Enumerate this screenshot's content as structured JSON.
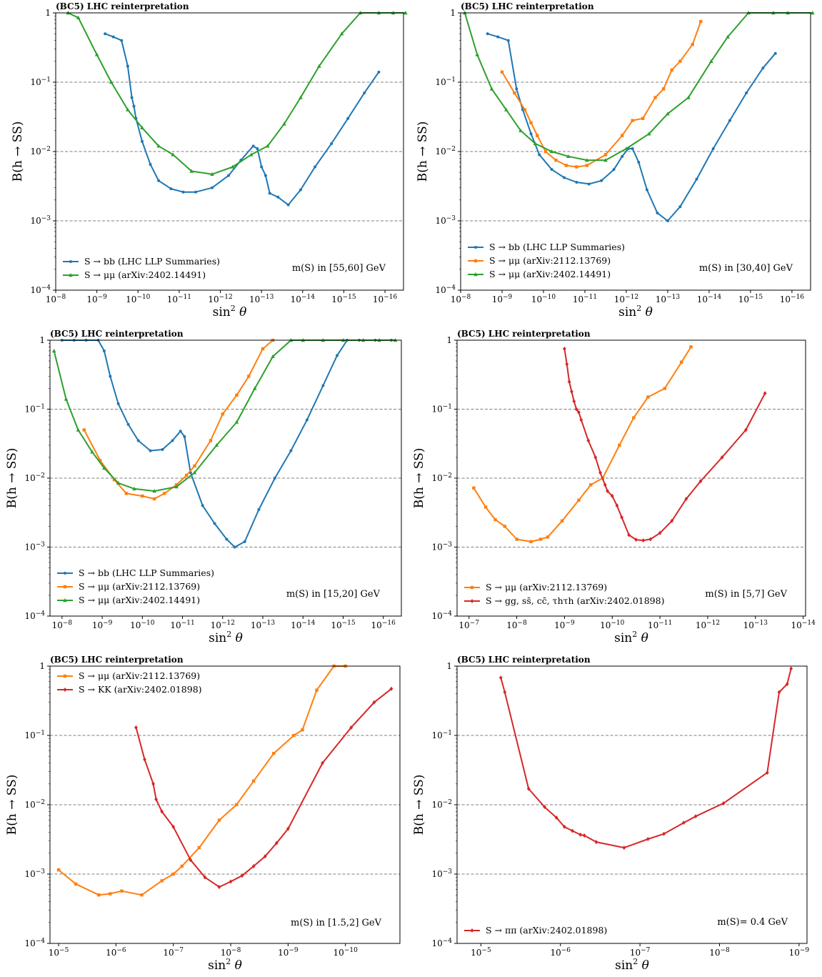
{
  "figure": {
    "panel_header": "(BC5) LHC reinterpretation",
    "ylabel": "B(h → SS)",
    "xlabel_main": "sin",
    "xlabel_sup": "2",
    "xlabel_tail": " θ"
  },
  "colors": {
    "blue": "#1f77b4",
    "orange": "#ff7f0e",
    "green": "#2ca02c",
    "red": "#d62728",
    "grid": "#555555"
  },
  "chart_data": [
    {
      "type": "line",
      "title": "(BC5) LHC reinterpretation",
      "xlabel": "sin^2 θ",
      "ylabel": "B(h → SS)",
      "xscale": "log-reversed",
      "yscale": "log",
      "xlim": [
        1e-08,
        1e-16
      ],
      "ylim": [
        0.0001,
        1
      ],
      "x_ticks": [
        "10^-8",
        "10^-9",
        "10^-10",
        "10^-11",
        "10^-12",
        "10^-13",
        "10^-14",
        "10^-15",
        "10^-16"
      ],
      "y_ticks": [
        "10^-4",
        "10^-3",
        "10^-2",
        "10^-1",
        "1"
      ],
      "grid": "horizontal dashed",
      "legend_position": "lower-left",
      "annotation": "m(S) in [55,60] GeV",
      "series": [
        {
          "name": "S → bb (LHC LLP Summaries)",
          "color": "blue",
          "marker": "dot",
          "x_exp": [
            -9.2,
            -9.4,
            -9.6,
            -9.75,
            -9.85,
            -9.9,
            -9.95,
            -10.1,
            -10.3,
            -10.5,
            -10.8,
            -11.1,
            -11.4,
            -11.8,
            -12.2,
            -12.5,
            -12.8,
            -12.9,
            -13.0,
            -13.1,
            -13.2,
            -13.4,
            -13.65,
            -13.95,
            -14.3,
            -14.7,
            -15.1,
            -15.5,
            -15.85
          ],
          "y": [
            0.5,
            0.45,
            0.4,
            0.17,
            0.06,
            0.045,
            0.03,
            0.014,
            0.0065,
            0.0038,
            0.0029,
            0.0026,
            0.0026,
            0.003,
            0.0045,
            0.0075,
            0.012,
            0.011,
            0.006,
            0.0045,
            0.0025,
            0.0022,
            0.0017,
            0.0028,
            0.006,
            0.013,
            0.03,
            0.07,
            0.14
          ]
        },
        {
          "name": "S → μμ (arXiv:2402.14491)",
          "color": "green",
          "marker": "triangle",
          "x_exp": [
            -8.3,
            -8.55,
            -9.0,
            -9.35,
            -9.75,
            -10.1,
            -10.5,
            -10.85,
            -11.3,
            -11.8,
            -12.3,
            -12.75,
            -13.15,
            -13.55,
            -13.95,
            -14.4,
            -14.95,
            -15.4,
            -15.85,
            -16.2,
            -16.5
          ],
          "y": [
            1.0,
            0.85,
            0.25,
            0.1,
            0.04,
            0.022,
            0.012,
            0.009,
            0.0052,
            0.0047,
            0.006,
            0.009,
            0.012,
            0.025,
            0.06,
            0.17,
            0.5,
            1.0,
            1.0,
            1.0,
            1.0
          ]
        }
      ]
    },
    {
      "type": "line",
      "title": "(BC5) LHC reinterpretation",
      "xlabel": "sin^2 θ",
      "ylabel": "B(h → SS)",
      "xscale": "log-reversed",
      "yscale": "log",
      "xlim": [
        1e-08,
        1e-16
      ],
      "ylim": [
        0.0001,
        1
      ],
      "x_ticks": [
        "10^-8",
        "10^-9",
        "10^-10",
        "10^-11",
        "10^-12",
        "10^-13",
        "10^-14",
        "10^-15",
        "10^-16"
      ],
      "y_ticks": [
        "10^-4",
        "10^-3",
        "10^-2",
        "10^-1",
        "1"
      ],
      "grid": "horizontal dashed",
      "legend_position": "lower-left",
      "annotation": "m(S) in [30,40] GeV",
      "series": [
        {
          "name": "S → bb (LHC LLP Summaries)",
          "color": "blue",
          "marker": "dot",
          "x_exp": [
            -8.65,
            -8.9,
            -9.15,
            -9.35,
            -9.5,
            -9.7,
            -9.9,
            -10.2,
            -10.5,
            -10.8,
            -11.1,
            -11.4,
            -11.7,
            -11.9,
            -12.05,
            -12.15,
            -12.3,
            -12.5,
            -12.75,
            -13.0,
            -13.3,
            -13.7,
            -14.1,
            -14.5,
            -14.9,
            -15.3,
            -15.6
          ],
          "y": [
            0.5,
            0.45,
            0.4,
            0.08,
            0.04,
            0.018,
            0.009,
            0.0055,
            0.0042,
            0.0036,
            0.0034,
            0.0038,
            0.0055,
            0.0085,
            0.011,
            0.011,
            0.007,
            0.0028,
            0.0013,
            0.001,
            0.0016,
            0.004,
            0.011,
            0.028,
            0.07,
            0.16,
            0.26
          ]
        },
        {
          "name": "S → μμ (arXiv:2112.13769)",
          "color": "orange",
          "marker": "square",
          "x_exp": [
            -9.0,
            -9.3,
            -9.55,
            -9.7,
            -9.85,
            -10.05,
            -10.3,
            -10.55,
            -10.8,
            -11.05,
            -11.5,
            -11.9,
            -12.15,
            -12.4,
            -12.7,
            -12.9,
            -13.1,
            -13.3,
            -13.6,
            -13.8
          ],
          "y": [
            0.14,
            0.07,
            0.04,
            0.026,
            0.017,
            0.01,
            0.0075,
            0.0063,
            0.006,
            0.0063,
            0.009,
            0.017,
            0.028,
            0.03,
            0.06,
            0.08,
            0.15,
            0.2,
            0.35,
            0.75
          ]
        },
        {
          "name": "S → μμ (arXiv:2402.14491)",
          "color": "green",
          "marker": "triangle",
          "x_exp": [
            -8.1,
            -8.4,
            -8.75,
            -9.1,
            -9.45,
            -9.8,
            -10.2,
            -10.6,
            -11.05,
            -11.5,
            -12.0,
            -12.55,
            -13.0,
            -13.5,
            -14.05,
            -14.45,
            -14.95,
            -15.55,
            -15.9,
            -16.5
          ],
          "y": [
            1.0,
            0.25,
            0.08,
            0.04,
            0.02,
            0.013,
            0.01,
            0.0085,
            0.0075,
            0.0075,
            0.011,
            0.018,
            0.035,
            0.06,
            0.2,
            0.45,
            1.0,
            1.0,
            1.0,
            1.0
          ]
        }
      ]
    },
    {
      "type": "line",
      "title": "(BC5) LHC reinterpretation",
      "xlabel": "sin^2 θ",
      "ylabel": "B(h → SS)",
      "xscale": "log-reversed",
      "yscale": "log",
      "xlim": [
        5e-08,
        5e-17
      ],
      "ylim": [
        0.0001,
        1
      ],
      "x_ticks": [
        "10^-8",
        "10^-9",
        "10^-10",
        "10^-11",
        "10^-12",
        "10^-13",
        "10^-14",
        "10^-15",
        "10^-16"
      ],
      "y_ticks": [
        "10^-4",
        "10^-3",
        "10^-2",
        "10^-1",
        "1"
      ],
      "grid": "horizontal dashed",
      "legend_position": "lower-left",
      "annotation": "m(S) in [15,20] GeV",
      "series": [
        {
          "name": "S → bb (LHC LLP Summaries)",
          "color": "blue",
          "marker": "dot",
          "x_exp": [
            -8.0,
            -8.3,
            -8.6,
            -8.9,
            -9.05,
            -9.2,
            -9.4,
            -9.65,
            -9.9,
            -10.2,
            -10.5,
            -10.75,
            -10.95,
            -11.05,
            -11.2,
            -11.5,
            -11.8,
            -12.1,
            -12.3,
            -12.55,
            -12.9,
            -13.3,
            -13.7,
            -14.1,
            -14.5,
            -14.85,
            -15.1,
            -15.4,
            -15.8,
            -16.2
          ],
          "y": [
            1.0,
            1.0,
            1.0,
            1.0,
            0.7,
            0.3,
            0.12,
            0.06,
            0.035,
            0.025,
            0.026,
            0.035,
            0.048,
            0.04,
            0.012,
            0.004,
            0.0022,
            0.0013,
            0.001,
            0.0012,
            0.0035,
            0.01,
            0.025,
            0.07,
            0.22,
            0.6,
            1.0,
            1.0,
            1.0,
            1.0
          ]
        },
        {
          "name": "S → μμ (arXiv:2112.13769)",
          "color": "orange",
          "marker": "square",
          "x_exp": [
            -8.55,
            -8.95,
            -9.3,
            -9.6,
            -10.0,
            -10.3,
            -10.55,
            -10.85,
            -11.1,
            -11.3,
            -11.7,
            -12.0,
            -12.35,
            -12.65,
            -13.0,
            -13.25
          ],
          "y": [
            0.05,
            0.018,
            0.0095,
            0.006,
            0.0055,
            0.005,
            0.006,
            0.008,
            0.011,
            0.015,
            0.035,
            0.085,
            0.16,
            0.3,
            0.75,
            1.0
          ]
        },
        {
          "name": "S → μμ (arXiv:2402.14491)",
          "color": "green",
          "marker": "triangle",
          "x_exp": [
            -7.8,
            -8.1,
            -8.4,
            -8.75,
            -9.05,
            -9.4,
            -9.8,
            -10.3,
            -10.85,
            -11.3,
            -11.85,
            -12.35,
            -12.8,
            -13.25,
            -13.7,
            -14.0,
            -14.5,
            -15.0,
            -15.5,
            -15.9,
            -16.3
          ],
          "y": [
            0.7,
            0.14,
            0.05,
            0.024,
            0.014,
            0.0085,
            0.007,
            0.0065,
            0.0075,
            0.012,
            0.03,
            0.065,
            0.2,
            0.58,
            1.0,
            1.0,
            1.0,
            1.0,
            1.0,
            1.0,
            1.0
          ]
        }
      ]
    },
    {
      "type": "line",
      "title": "(BC5) LHC reinterpretation",
      "xlabel": "sin^2 θ",
      "ylabel": "B(h → SS)",
      "xscale": "log-reversed",
      "yscale": "log",
      "xlim": [
        3e-07,
        1e-14
      ],
      "ylim": [
        0.0001,
        1
      ],
      "x_ticks": [
        "10^-7",
        "10^-8",
        "10^-9",
        "10^-10",
        "10^-11",
        "10^-12",
        "10^-13",
        "10^-14"
      ],
      "y_ticks": [
        "10^-4",
        "10^-3",
        "10^-2",
        "10^-1",
        "1"
      ],
      "grid": "horizontal dashed",
      "legend_position": "lower-left",
      "annotation": "m(S) in [5,7] GeV",
      "series": [
        {
          "name": "S → μμ (arXiv:2112.13769)",
          "color": "orange",
          "marker": "square",
          "x_exp": [
            -7.1,
            -7.35,
            -7.55,
            -7.75,
            -8.0,
            -8.3,
            -8.5,
            -8.65,
            -8.95,
            -9.3,
            -9.55,
            -9.8,
            -10.15,
            -10.45,
            -10.75,
            -11.1,
            -11.45,
            -11.65
          ],
          "y": [
            0.0072,
            0.0038,
            0.0025,
            0.002,
            0.0013,
            0.0012,
            0.0013,
            0.0014,
            0.0024,
            0.0048,
            0.008,
            0.01,
            0.03,
            0.075,
            0.15,
            0.2,
            0.48,
            0.8
          ]
        },
        {
          "name": "S → gg, ss̄, cc̄, τhτh (arXiv:2402.01898)",
          "color": "red",
          "marker": "diamond",
          "x_exp": [
            -9.0,
            -9.05,
            -9.1,
            -9.15,
            -9.2,
            -9.25,
            -9.3,
            -9.35,
            -9.5,
            -9.65,
            -9.75,
            -9.85,
            -9.9,
            -10.0,
            -10.1,
            -10.2,
            -10.35,
            -10.5,
            -10.65,
            -10.8,
            -11.0,
            -11.25,
            -11.55,
            -11.85,
            -12.3,
            -12.8,
            -13.2
          ],
          "y": [
            0.75,
            0.45,
            0.25,
            0.18,
            0.13,
            0.1,
            0.09,
            0.07,
            0.035,
            0.02,
            0.012,
            0.008,
            0.0065,
            0.0055,
            0.004,
            0.0027,
            0.0015,
            0.00128,
            0.00125,
            0.0013,
            0.0016,
            0.0024,
            0.005,
            0.009,
            0.02,
            0.05,
            0.17
          ]
        }
      ]
    },
    {
      "type": "line",
      "title": "(BC5) LHC reinterpretation",
      "xlabel": "sin^2 θ",
      "ylabel": "B(h → SS)",
      "xscale": "log-reversed",
      "yscale": "log",
      "xlim": [
        1.5e-05,
        1e-11
      ],
      "ylim": [
        0.0001,
        1
      ],
      "x_ticks": [
        "10^-5",
        "10^-6",
        "10^-7",
        "10^-8",
        "10^-9",
        "10^-10"
      ],
      "y_ticks": [
        "10^-4",
        "10^-3",
        "10^-2",
        "10^-1",
        "1"
      ],
      "grid": "horizontal dashed",
      "legend_position": "upper-left",
      "annotation": "m(S) in [1.5,2] GeV",
      "series": [
        {
          "name": "S → μμ (arXiv:2112.13769)",
          "color": "orange",
          "marker": "square",
          "x_exp": [
            -5.0,
            -5.3,
            -5.7,
            -5.9,
            -6.1,
            -6.45,
            -6.8,
            -7.0,
            -7.15,
            -7.45,
            -7.8,
            -8.1,
            -8.4,
            -8.75,
            -9.1,
            -9.25,
            -9.5,
            -9.8,
            -10.0
          ],
          "y": [
            0.00115,
            0.00072,
            0.0005,
            0.00052,
            0.00057,
            0.0005,
            0.0008,
            0.001,
            0.0013,
            0.0024,
            0.006,
            0.01,
            0.022,
            0.055,
            0.1,
            0.12,
            0.45,
            1.0,
            1.0
          ]
        },
        {
          "name": "S → KK (arXiv:2402.01898)",
          "color": "red",
          "marker": "diamond",
          "x_exp": [
            -6.35,
            -6.5,
            -6.65,
            -6.7,
            -6.8,
            -7.0,
            -7.3,
            -7.55,
            -7.8,
            -8.0,
            -8.2,
            -8.4,
            -8.6,
            -8.8,
            -9.0,
            -9.6,
            -10.1,
            -10.5,
            -10.8
          ],
          "y": [
            0.13,
            0.045,
            0.02,
            0.012,
            0.008,
            0.0048,
            0.0016,
            0.0009,
            0.00065,
            0.00078,
            0.00095,
            0.0013,
            0.0018,
            0.0028,
            0.0045,
            0.04,
            0.13,
            0.3,
            0.47
          ]
        }
      ]
    },
    {
      "type": "line",
      "title": "(BC5) LHC reinterpretation",
      "xlabel": "sin^2 θ",
      "ylabel": "B(h → SS)",
      "xscale": "log-reversed",
      "yscale": "log",
      "xlim": [
        2e-05,
        1e-09
      ],
      "ylim": [
        0.0001,
        1
      ],
      "x_ticks": [
        "10^-5",
        "10^-6",
        "10^-7",
        "10^-8",
        "10^-9"
      ],
      "y_ticks": [
        "10^-4",
        "10^-3",
        "10^-2",
        "10^-1",
        "1"
      ],
      "grid": "horizontal dashed",
      "legend_position": "lower-left",
      "annotation": "m(S)= 0.4 GeV",
      "series": [
        {
          "name": "S → ππ (arXiv:2402.01898)",
          "color": "red",
          "marker": "diamond",
          "x_exp": [
            -5.25,
            -5.3,
            -5.6,
            -5.8,
            -5.95,
            -6.05,
            -6.15,
            -6.25,
            -6.3,
            -6.45,
            -6.8,
            -7.1,
            -7.3,
            -7.55,
            -7.7,
            -8.05,
            -8.6,
            -8.75,
            -8.85,
            -8.9
          ],
          "y": [
            0.68,
            0.42,
            0.017,
            0.0093,
            0.0065,
            0.0048,
            0.0042,
            0.0037,
            0.0036,
            0.0029,
            0.0024,
            0.0032,
            0.0038,
            0.0055,
            0.0068,
            0.0105,
            0.029,
            0.42,
            0.55,
            0.92
          ]
        }
      ]
    }
  ]
}
